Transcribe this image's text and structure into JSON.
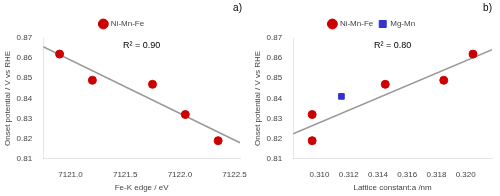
{
  "chart_data": [
    {
      "type": "scatter",
      "title": "a)",
      "xlabel": "Fe-K edge / eV",
      "ylabel": "Onset potential / V vs RHE",
      "xlim": [
        7120.75,
        7122.55
      ],
      "ylim": [
        0.81,
        0.87
      ],
      "xticks": [
        {
          "value": 7121.0,
          "label": "7121.0"
        },
        7121.5,
        {
          "value": 7122.0,
          "label": "7122.0"
        },
        7122.5
      ],
      "yticks": [
        0.81,
        0.82,
        0.83,
        0.84,
        0.85,
        0.86,
        0.87
      ],
      "grid": false,
      "legend": "top",
      "annotations": [
        "R² = 0.90"
      ],
      "series": [
        {
          "type": "line",
          "color": "#999999",
          "x": [
            7120.75,
            7122.55
          ],
          "values": [
            0.86564,
            0.81796
          ]
        },
        {
          "name": "Ni-Mn-Fe",
          "color": "#cc0000",
          "marker": "circle",
          "x": [
            7120.9,
            7121.2,
            7121.75,
            7122.05,
            7122.35
          ],
          "values": [
            0.862,
            0.849,
            0.847,
            0.832,
            0.819
          ]
        }
      ]
    },
    {
      "type": "scatter",
      "title": "b)",
      "xlabel": "Lattice constant:a /nm",
      "ylabel": "Onset potential / V vs RHE",
      "xlim": [
        0.3082,
        0.3218
      ],
      "ylim": [
        0.81,
        0.87
      ],
      "xticks": [
        {
          "value": 0.31,
          "label": "0.310"
        },
        0.312,
        0.314,
        0.316,
        0.318,
        {
          "value": 0.32,
          "label": "0.320"
        }
      ],
      "yticks": [
        0.81,
        0.82,
        0.83,
        0.84,
        0.85,
        0.86,
        0.87
      ],
      "grid": false,
      "legend": "top",
      "annotations": [
        "R² = 0.80"
      ],
      "series": [
        {
          "type": "line",
          "color": "#999999",
          "x": [
            0.3082,
            0.3218
          ],
          "values": [
            0.82247,
            0.8642
          ]
        },
        {
          "name": "Ni-Mn-Fe",
          "color": "#cc0000",
          "marker": "circle",
          "x": [
            0.3095,
            0.3095,
            0.3145,
            0.3185,
            0.3205
          ],
          "values": [
            0.819,
            0.832,
            0.847,
            0.849,
            0.862
          ]
        },
        {
          "name": "Mg-Mn",
          "color": "#3333cc",
          "marker": "square",
          "x": [
            0.3115
          ],
          "values": [
            0.841
          ]
        }
      ]
    }
  ]
}
